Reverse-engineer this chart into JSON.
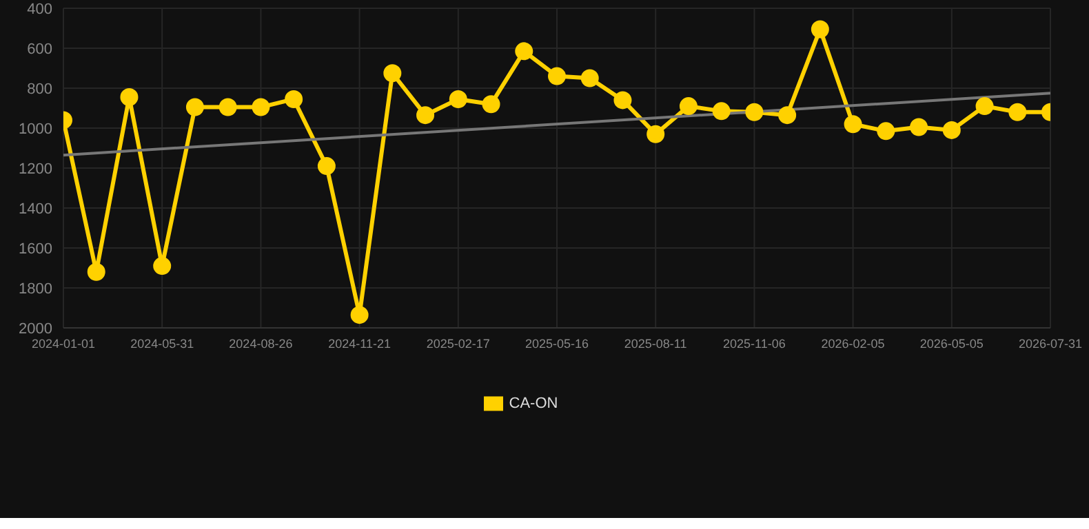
{
  "chart_data": {
    "type": "line",
    "categories": [
      "2024-01-01",
      null,
      null,
      "2024-05-31",
      null,
      null,
      "2024-08-26",
      null,
      null,
      "2024-11-21",
      null,
      null,
      "2025-02-17",
      null,
      null,
      "2025-05-16",
      null,
      null,
      "2025-08-11",
      null,
      null,
      "2025-11-06",
      null,
      null,
      "2026-02-05",
      null,
      null,
      "2026-05-05",
      null,
      null,
      "2026-07-31"
    ],
    "series": [
      {
        "name": "CA-ON",
        "color": "#ffd100",
        "marker": "circle",
        "values": [
          960,
          1720,
          845,
          1690,
          895,
          895,
          895,
          855,
          1190,
          1935,
          725,
          935,
          855,
          880,
          615,
          740,
          750,
          860,
          1030,
          890,
          915,
          920,
          935,
          505,
          980,
          1015,
          995,
          1010,
          890,
          920,
          920
        ]
      },
      {
        "type": "line",
        "color": "#777777",
        "marker": "none",
        "values": [
          1135,
          null,
          null,
          null,
          null,
          null,
          null,
          null,
          null,
          null,
          null,
          null,
          null,
          null,
          null,
          null,
          null,
          null,
          null,
          null,
          null,
          null,
          null,
          null,
          null,
          null,
          null,
          null,
          null,
          null,
          825
        ]
      }
    ],
    "ylim": [
      2000,
      400
    ],
    "yticks": [
      400,
      600,
      800,
      1000,
      1200,
      1400,
      1600,
      1800,
      2000
    ],
    "grid": true,
    "legend": "bottom"
  }
}
